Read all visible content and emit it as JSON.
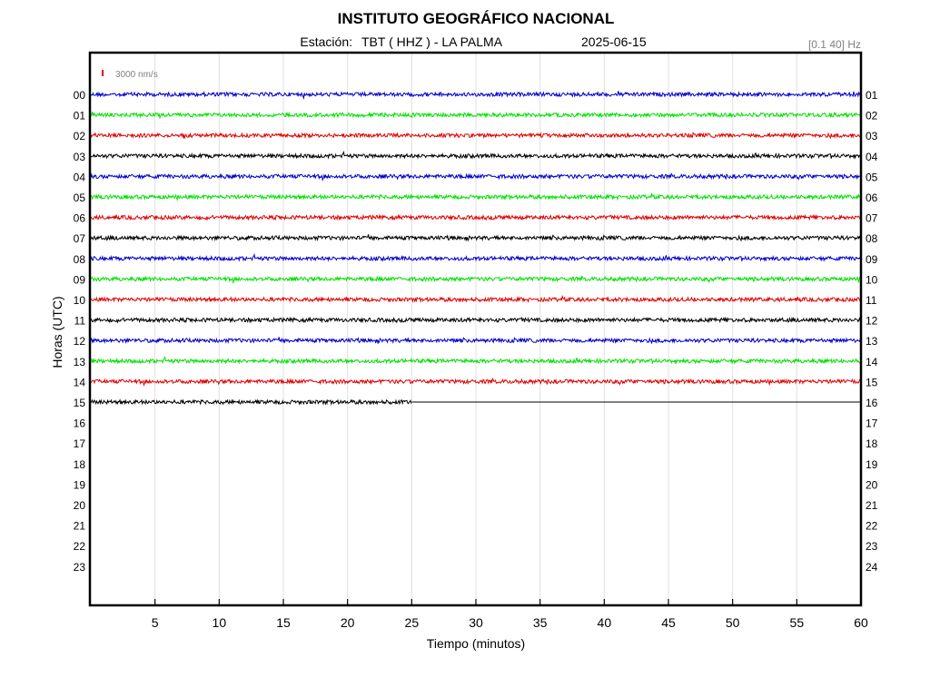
{
  "header": {
    "title": "INSTITUTO GEOGRÁFICO NACIONAL",
    "station_label": "Estación:",
    "station": "TBT ( HHZ ) - LA PALMA",
    "date": "2025-06-15",
    "filter": "[0.1 40] Hz"
  },
  "scale": {
    "label": "3000 nm/s",
    "color": "#e00000"
  },
  "chart_data": {
    "type": "line",
    "title": "INSTITUTO GEOGRÁFICO NACIONAL",
    "xlabel": "Tiempo (minutos)",
    "ylabel": "Horas (UTC)",
    "xlim": [
      0,
      60
    ],
    "x_ticks": [
      "5",
      "10",
      "15",
      "20",
      "25",
      "30",
      "35",
      "40",
      "45",
      "50",
      "55",
      "60"
    ],
    "x_tick_values": [
      5,
      10,
      15,
      20,
      25,
      30,
      35,
      40,
      45,
      50,
      55,
      60
    ],
    "grid_x": true,
    "left_hour_labels": [
      "00",
      "01",
      "02",
      "03",
      "04",
      "05",
      "06",
      "07",
      "08",
      "09",
      "10",
      "11",
      "12",
      "13",
      "14",
      "15",
      "16",
      "17",
      "18",
      "19",
      "20",
      "21",
      "22",
      "23"
    ],
    "right_hour_labels": [
      "01",
      "02",
      "03",
      "04",
      "05",
      "06",
      "07",
      "08",
      "09",
      "10",
      "11",
      "12",
      "13",
      "14",
      "15",
      "16",
      "17",
      "18",
      "19",
      "20",
      "21",
      "22",
      "23",
      "24"
    ],
    "series_colors": [
      "#0000cc",
      "#00e000",
      "#e00000",
      "#000000"
    ],
    "traces": [
      {
        "hour": 0,
        "color": "#0000cc",
        "x_end": 60
      },
      {
        "hour": 1,
        "color": "#00e000",
        "x_end": 60
      },
      {
        "hour": 2,
        "color": "#e00000",
        "x_end": 60
      },
      {
        "hour": 3,
        "color": "#000000",
        "x_end": 60
      },
      {
        "hour": 4,
        "color": "#0000cc",
        "x_end": 60
      },
      {
        "hour": 5,
        "color": "#00e000",
        "x_end": 60
      },
      {
        "hour": 6,
        "color": "#e00000",
        "x_end": 60
      },
      {
        "hour": 7,
        "color": "#000000",
        "x_end": 60
      },
      {
        "hour": 8,
        "color": "#0000cc",
        "x_end": 60
      },
      {
        "hour": 9,
        "color": "#00e000",
        "x_end": 60
      },
      {
        "hour": 10,
        "color": "#e00000",
        "x_end": 60
      },
      {
        "hour": 11,
        "color": "#000000",
        "x_end": 60
      },
      {
        "hour": 12,
        "color": "#0000cc",
        "x_end": 60
      },
      {
        "hour": 13,
        "color": "#00e000",
        "x_end": 60
      },
      {
        "hour": 14,
        "color": "#e00000",
        "x_end": 60
      },
      {
        "hour": 15,
        "color": "#000000",
        "x_end": 25,
        "flat_to": 60
      }
    ]
  }
}
